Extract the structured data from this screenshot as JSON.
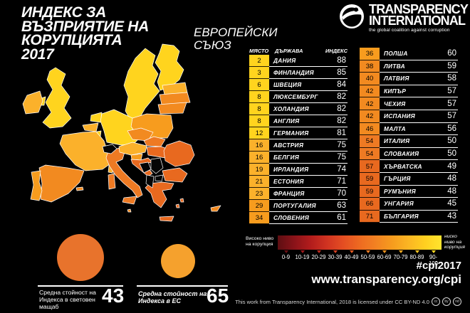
{
  "title": {
    "lines": [
      "ИНДЕКС ЗА",
      "ВЪЗПРИЯТИЕ НА",
      "КОРУПЦИЯТА",
      "2017"
    ]
  },
  "subtitle": {
    "lines": [
      "ЕВРОПЕЙСКИ",
      "СЪЮЗ"
    ]
  },
  "logo": {
    "line1": "TRANSPARENCY",
    "line2": "INTERNATIONAL",
    "tagline": "the global coalition against corruption"
  },
  "palette": {
    "s80": "#FFD41E",
    "s70": "#FBB12B",
    "s60": "#F79C1E",
    "s55": "#F28A20",
    "s50": "#EE7A23",
    "s40": "#E8691F",
    "non_eu": "#050505"
  },
  "tables": {
    "headers": {
      "rank": "МЯСТО",
      "country": "ДЪРЖАВА",
      "index": "ИНДЕКС"
    },
    "column1": [
      {
        "rank": "2",
        "country": "ДАНИЯ",
        "index": 88
      },
      {
        "rank": "3",
        "country": "ФИНЛАНДИЯ",
        "index": 85
      },
      {
        "rank": "6",
        "country": "ШВЕЦИЯ",
        "index": 84
      },
      {
        "rank": "8",
        "country": "ЛЮКСЕМБУРГ",
        "index": 82
      },
      {
        "rank": "8",
        "country": "ХОЛАНДИЯ",
        "index": 82
      },
      {
        "rank": "8",
        "country": "АНГЛИЯ",
        "index": 82
      },
      {
        "rank": "12",
        "country": "ГЕРМАНИЯ",
        "index": 81
      },
      {
        "rank": "16",
        "country": "АВСТРИЯ",
        "index": 75
      },
      {
        "rank": "16",
        "country": "БЕЛГИЯ",
        "index": 75
      },
      {
        "rank": "19",
        "country": "ИРЛАНДИЯ",
        "index": 74
      },
      {
        "rank": "21",
        "country": "ЕСТОНИЯ",
        "index": 71
      },
      {
        "rank": "23",
        "country": "ФРАНЦИЯ",
        "index": 70
      },
      {
        "rank": "29",
        "country": "ПОРТУГАЛИЯ",
        "index": 63
      },
      {
        "rank": "34",
        "country": "СЛОВЕНИЯ",
        "index": 61
      }
    ],
    "column2": [
      {
        "rank": "36",
        "country": "ПОЛША",
        "index": 60
      },
      {
        "rank": "38",
        "country": "ЛИТВА",
        "index": 59
      },
      {
        "rank": "40",
        "country": "ЛАТВИЯ",
        "index": 58
      },
      {
        "rank": "42",
        "country": "КИПЪР",
        "index": 57
      },
      {
        "rank": "42",
        "country": "ЧЕХИЯ",
        "index": 57
      },
      {
        "rank": "42",
        "country": "ИСПАНИЯ",
        "index": 57
      },
      {
        "rank": "46",
        "country": "МАЛТА",
        "index": 56
      },
      {
        "rank": "54",
        "country": "ИТАЛИЯ",
        "index": 50
      },
      {
        "rank": "54",
        "country": "СЛОВАКИЯ",
        "index": 50
      },
      {
        "rank": "57",
        "country": "ХЪРВАТСКА",
        "index": 49
      },
      {
        "rank": "59",
        "country": "ГЪРЦИЯ",
        "index": 48
      },
      {
        "rank": "59",
        "country": "РУМЪНИЯ",
        "index": 48
      },
      {
        "rank": "66",
        "country": "УНГАРИЯ",
        "index": 45
      },
      {
        "rank": "71",
        "country": "БЪЛГАРИЯ",
        "index": 43
      }
    ]
  },
  "map": {
    "scores": {
      "finland": 85,
      "sweden": 84,
      "denmark": 88,
      "denmark-isle": 88,
      "estonia": 71,
      "latvia": 58,
      "lithuania": 59,
      "poland": 60,
      "germany": 81,
      "netherlands": 82,
      "belgium": 75,
      "luxembourg": 82,
      "uk": 82,
      "n-ireland": 82,
      "ireland": 74,
      "france": 70,
      "corsica": 70,
      "spain": 57,
      "balearic": 57,
      "portugal": 63,
      "italy": 50,
      "sicily": 50,
      "sardinia": 50,
      "czechia": 57,
      "slovakia": 50,
      "austria": 75,
      "hungary": 45,
      "slovenia": 61,
      "croatia": 49,
      "romania": 48,
      "bulgaria": 43,
      "greece": 48,
      "crete": 48,
      "aegean-1": 48,
      "aegean-2": 48,
      "cyprus": 57,
      "malta": 56
    }
  },
  "legend": {
    "left_label_lines": [
      "Високо ниво",
      "на корупция"
    ],
    "right_label_lines": [
      "ниско",
      "ниво на",
      "корупция"
    ],
    "ticks": [
      "0-9",
      "10-19",
      "20-29",
      "30-39",
      "40-49",
      "50-59",
      "60-69",
      "70-79",
      "80-89",
      "90-100"
    ],
    "gradient_stops": [
      "#5D0E12",
      "#8A1319",
      "#B21C1C",
      "#D03321",
      "#E44E22",
      "#EE6A21",
      "#F28222",
      "#F69C1E",
      "#FBB623",
      "#FFD020",
      "#FFE42E"
    ],
    "tick_colors": [
      "#6B1014",
      "#9E181C",
      "#C02A1E",
      "#D84122",
      "#E85C22",
      "#F07C22",
      "#F4941D",
      "#F9AD20",
      "#FDC622",
      "#FFD91E"
    ]
  },
  "averages": [
    {
      "label_lines": [
        "Средна стойност на",
        "Индекса в световен",
        "мащаб"
      ],
      "value": "43",
      "circle_color": "#E8732C"
    },
    {
      "label_lines": [
        "Средна стойност на",
        "Индекса в ЕС",
        ""
      ],
      "value": "65",
      "circle_color": "#F5A12D"
    }
  ],
  "footer": {
    "hashtag": "#cpi2017",
    "url": "www.transparency.org/cpi",
    "license": "This work from Transparency International, 2018 is licensed under CC BY-ND 4.0",
    "cc_icons": [
      "cc",
      "by",
      "nd"
    ]
  }
}
